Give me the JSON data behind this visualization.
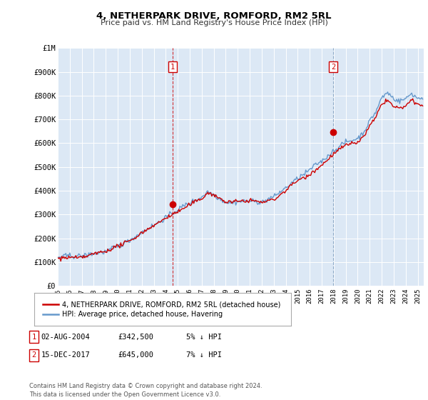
{
  "title": "4, NETHERPARK DRIVE, ROMFORD, RM2 5RL",
  "subtitle": "Price paid vs. HM Land Registry's House Price Index (HPI)",
  "background_color": "#ffffff",
  "plot_bg_color": "#dce8f5",
  "grid_color": "#ffffff",
  "ylim": [
    0,
    1000000
  ],
  "yticks": [
    0,
    100000,
    200000,
    300000,
    400000,
    500000,
    600000,
    700000,
    800000,
    900000,
    1000000
  ],
  "ytick_labels": [
    "£0",
    "£100K",
    "£200K",
    "£300K",
    "£400K",
    "£500K",
    "£600K",
    "£700K",
    "£800K",
    "£900K",
    "£1M"
  ],
  "hpi_color": "#6699cc",
  "price_color": "#cc0000",
  "sale1_date": 2004.583,
  "sale1_price": 342500,
  "sale2_date": 2017.958,
  "sale2_price": 645000,
  "legend_entries": [
    "4, NETHERPARK DRIVE, ROMFORD, RM2 5RL (detached house)",
    "HPI: Average price, detached house, Havering"
  ],
  "table_rows": [
    [
      "1",
      "02-AUG-2004",
      "£342,500",
      "5% ↓ HPI"
    ],
    [
      "2",
      "15-DEC-2017",
      "£645,000",
      "7% ↓ HPI"
    ]
  ],
  "footer": "Contains HM Land Registry data © Crown copyright and database right 2024.\nThis data is licensed under the Open Government Licence v3.0.",
  "xmin": 1995.0,
  "xmax": 2025.5
}
